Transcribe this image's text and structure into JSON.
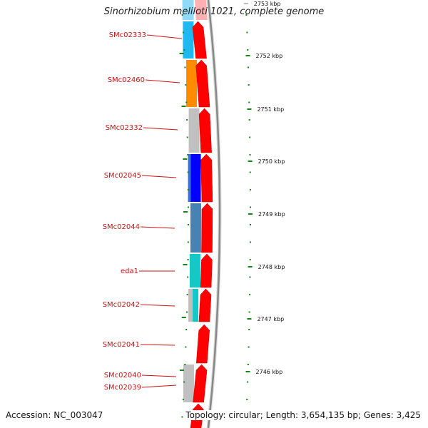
{
  "title": "Sinorhizobium meliloti 1021, complete genome",
  "footer": {
    "accession": "Accession: NC_003047",
    "stats": "Topology: circular; Length: 3,654,135 bp; Genes: 3,425"
  },
  "colors": {
    "gene_label": "#cc1111",
    "cds_red": "#ff0000",
    "backbone": "#888888",
    "tick_green": "#118811",
    "cog_cyan": "#1fb8f0",
    "cog_orange": "#ff8c00",
    "cog_grey": "#c0c0c0",
    "cog_blue": "#0000ff",
    "cog_steel": "#4682b4",
    "cog_teal": "#14c8c8"
  },
  "scale_ticks": [
    {
      "label": "2753 kbp"
    },
    {
      "label": "2752 kbp"
    },
    {
      "label": "2751 kbp"
    },
    {
      "label": "2750 kbp"
    },
    {
      "label": "2749 kbp"
    },
    {
      "label": "2748 kbp"
    },
    {
      "label": "2747 kbp"
    },
    {
      "label": "2746 kbp"
    }
  ],
  "genes": [
    {
      "name": "SMc02333",
      "cog": "cog_cyan"
    },
    {
      "name": "SMc02460",
      "cog": "cog_orange"
    },
    {
      "name": "SMc02332",
      "cog": "cog_grey"
    },
    {
      "name": "SMc02045",
      "cog": "cog_blue"
    },
    {
      "name": "SMc02044",
      "cog": "cog_steel"
    },
    {
      "name": "eda1",
      "cog": "cog_teal"
    },
    {
      "name": "SMc02042",
      "cog": "cog_grey"
    },
    {
      "name": "SMc02041",
      "cog": ""
    },
    {
      "name": "SMc02040",
      "cog": "cog_grey"
    },
    {
      "name": "SMc02039",
      "cog": ""
    }
  ]
}
